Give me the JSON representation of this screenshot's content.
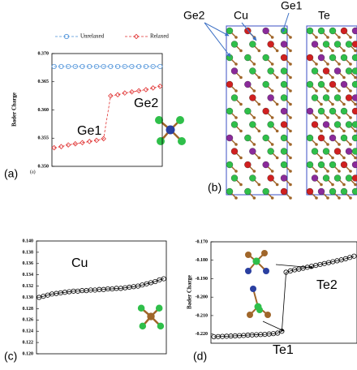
{
  "chart_data": [
    {
      "type": "line",
      "panel_label": "(a)",
      "sublabel": "(a)",
      "ylabel": "Bader Charge",
      "ylim": [
        0.35,
        0.37
      ],
      "yticks": [
        {
          "value": 0.35,
          "label": "0.350"
        },
        {
          "value": 0.355,
          "label": "0.355"
        },
        {
          "value": 0.36,
          "label": "0.360"
        },
        {
          "value": 0.365,
          "label": "0.365"
        },
        {
          "value": 0.37,
          "label": "0.370"
        }
      ],
      "legend": "top",
      "annotations": [
        "Ge1",
        "Ge2"
      ],
      "series": [
        {
          "name": "Unrelaxed",
          "color": "#4a90d9",
          "marker": "circle",
          "linestyle": "dashed",
          "values": [
            0.3677,
            0.3677,
            0.3677,
            0.3677,
            0.3677,
            0.3677,
            0.3677,
            0.3677,
            0.3677,
            0.3677,
            0.3677,
            0.3677,
            0.3677,
            0.3677,
            0.3677,
            0.3677
          ]
        },
        {
          "name": "Relaxed",
          "color": "#e03030",
          "marker": "diamond",
          "linestyle": "dashed",
          "values": [
            0.3533,
            0.3535,
            0.3538,
            0.354,
            0.3542,
            0.3544,
            0.3546,
            0.3549,
            0.3625,
            0.3627,
            0.363,
            0.3632,
            0.3634,
            0.3636,
            0.3639,
            0.3642
          ]
        }
      ]
    },
    {
      "type": "line",
      "panel_label": "(c)",
      "annotations": [
        "Cu"
      ],
      "ylim": [
        0.12,
        0.14
      ],
      "yticks": [
        {
          "value": 0.12,
          "label": "0.120"
        },
        {
          "value": 0.122,
          "label": "0.122"
        },
        {
          "value": 0.124,
          "label": "0.124"
        },
        {
          "value": 0.126,
          "label": "0.126"
        },
        {
          "value": 0.128,
          "label": "0.128"
        },
        {
          "value": 0.13,
          "label": "0.130"
        },
        {
          "value": 0.132,
          "label": "0.132"
        },
        {
          "value": 0.134,
          "label": "0.134"
        },
        {
          "value": 0.136,
          "label": "0.136"
        },
        {
          "value": 0.138,
          "label": "0.138"
        },
        {
          "value": 0.14,
          "label": "0.140"
        }
      ],
      "series": [
        {
          "color": "#000000",
          "marker": "circle",
          "linestyle": "solid",
          "values": [
            0.13,
            0.1302,
            0.1304,
            0.1306,
            0.1307,
            0.1308,
            0.1309,
            0.131,
            0.1311,
            0.1311,
            0.1312,
            0.1312,
            0.1313,
            0.1313,
            0.1314,
            0.1314,
            0.1315,
            0.1315,
            0.1316,
            0.1316,
            0.1317,
            0.1318,
            0.1319,
            0.132,
            0.1322,
            0.1324,
            0.1326,
            0.1328,
            0.1331,
            0.1333
          ]
        }
      ]
    },
    {
      "type": "line",
      "panel_label": "(d)",
      "ylabel": "Bader Charge",
      "annotations": [
        "Te1",
        "Te2"
      ],
      "ylim": [
        -0.225,
        -0.17
      ],
      "yticks": [
        {
          "value": -0.17,
          "label": "-0.170"
        },
        {
          "value": -0.18,
          "label": "-0.180"
        },
        {
          "value": -0.19,
          "label": "-0.190"
        },
        {
          "value": -0.2,
          "label": "-0.200"
        },
        {
          "value": -0.21,
          "label": "-0.210"
        },
        {
          "value": -0.22,
          "label": "-0.220"
        }
      ],
      "series": [
        {
          "color": "#000000",
          "marker": "circle",
          "linestyle": "solid",
          "values": [
            -0.2215,
            -0.2214,
            -0.2213,
            -0.2212,
            -0.2211,
            -0.221,
            -0.2209,
            -0.2208,
            -0.2206,
            -0.2205,
            -0.2204,
            -0.2203,
            -0.2202,
            -0.22,
            -0.2198,
            -0.2195,
            -0.2185,
            -0.1865,
            -0.1858,
            -0.1852,
            -0.1848,
            -0.1843,
            -0.1838,
            -0.1833,
            -0.1828,
            -0.1823,
            -0.1818,
            -0.1813,
            -0.1808,
            -0.1803,
            -0.1798,
            -0.1792,
            -0.1785,
            -0.1778
          ]
        }
      ]
    }
  ],
  "structure": {
    "labels": [
      "Ge2",
      "Cu",
      "Ge1",
      "Te"
    ],
    "panel_label": "(b)"
  }
}
